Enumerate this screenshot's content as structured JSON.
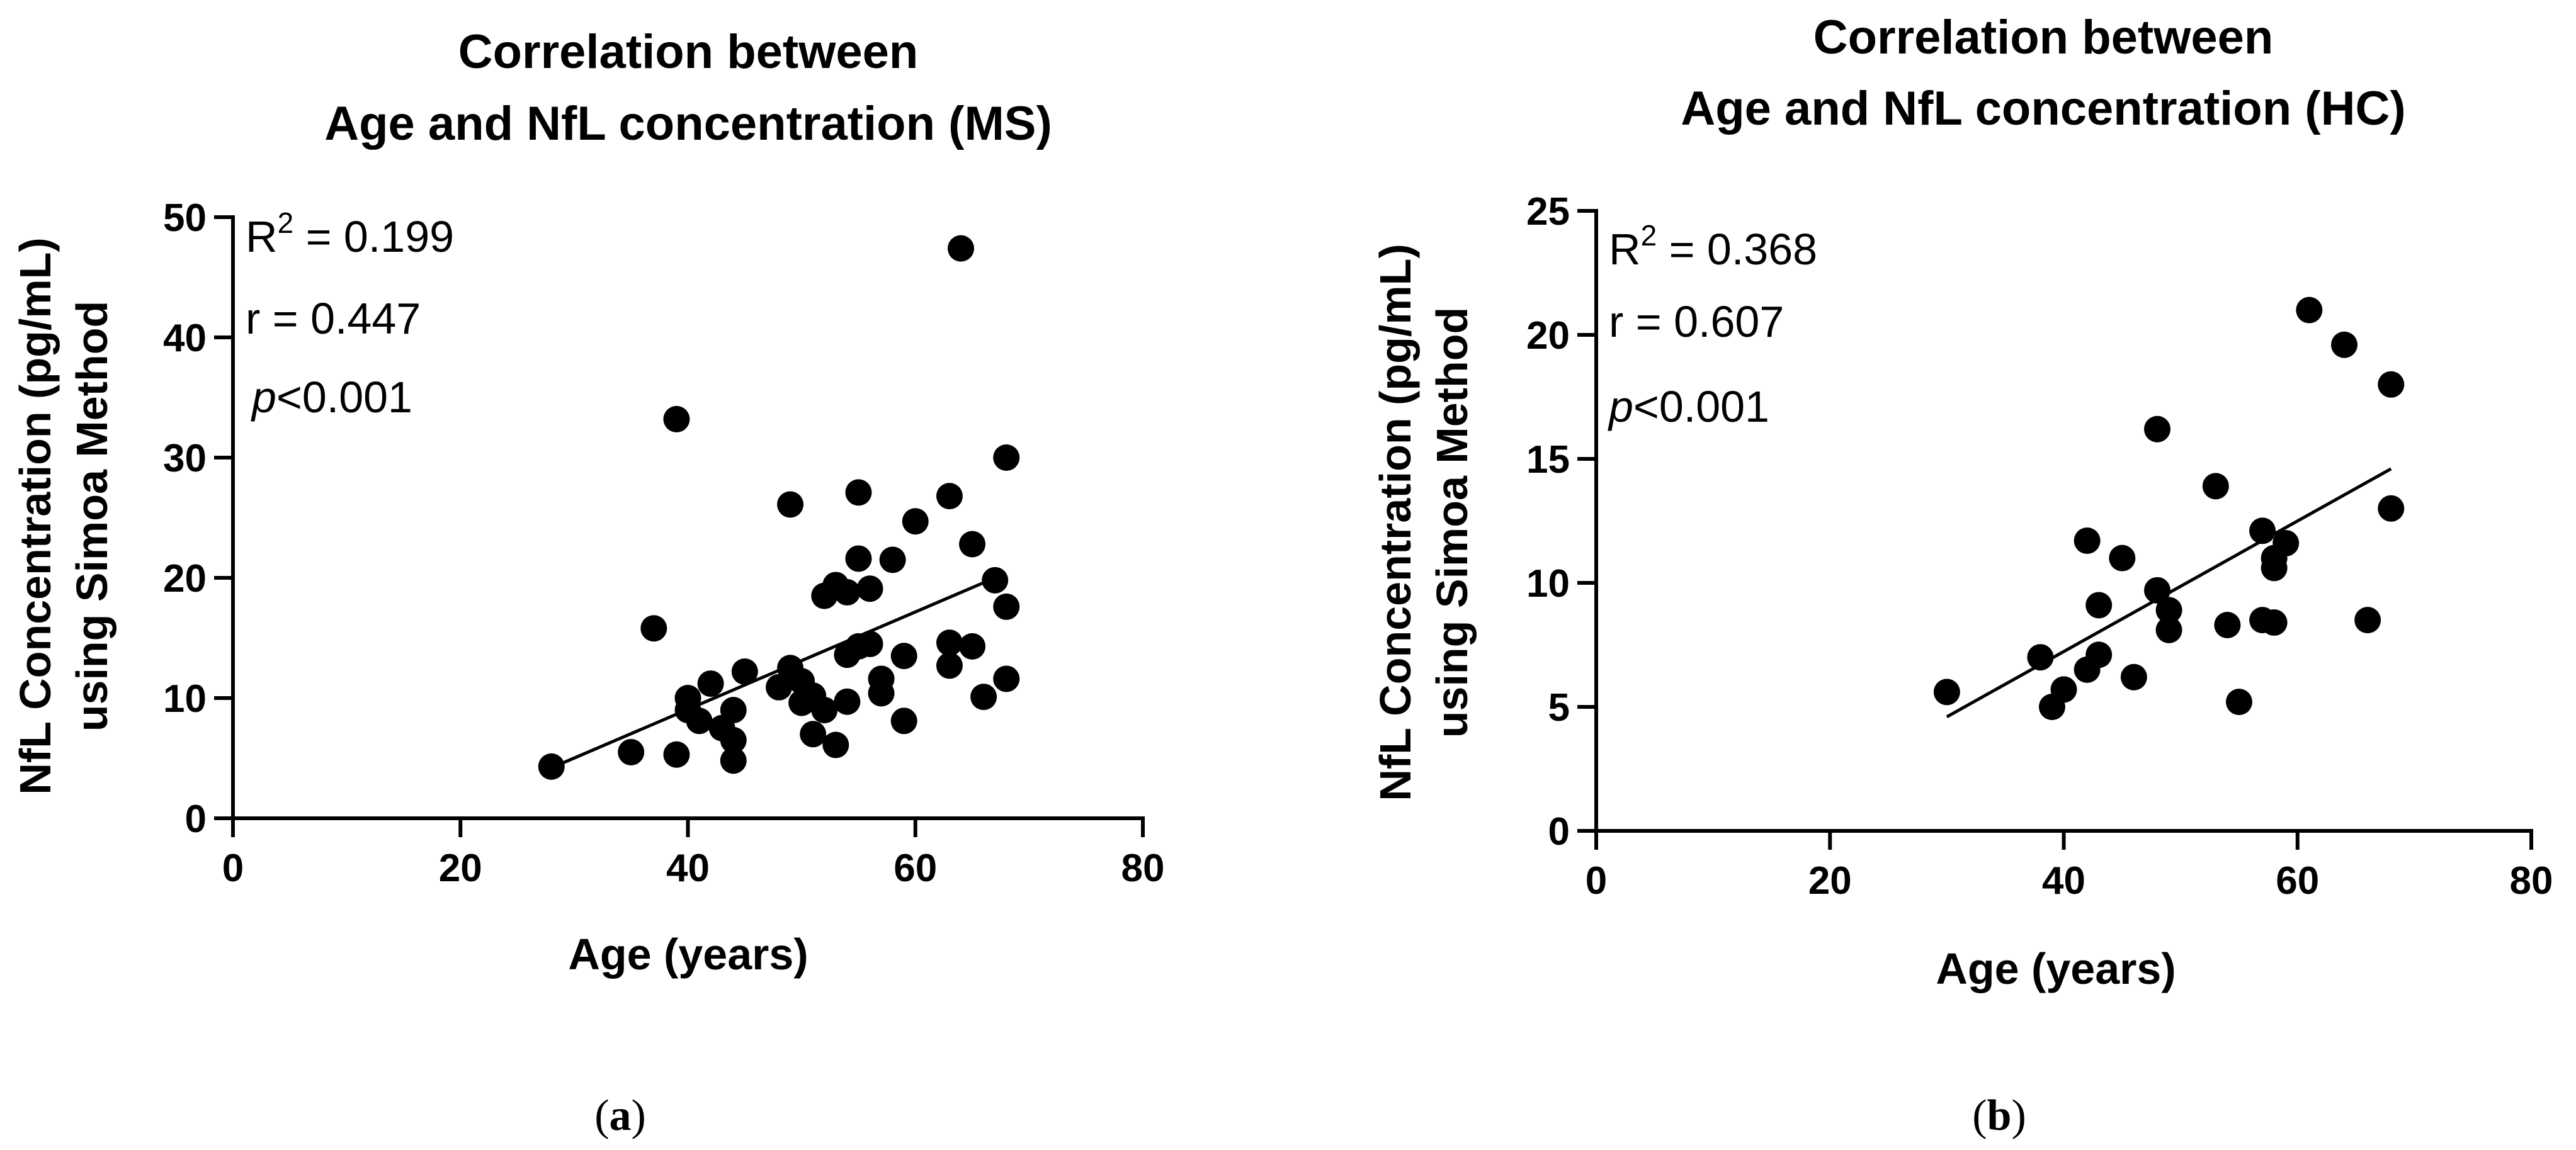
{
  "chart_data": [
    {
      "type": "scatter",
      "title_line1": "Correlation between",
      "title_line2": "Age and NfL concentration (MS)",
      "xlabel": "Age (years)",
      "ylabel_line1": "NfL Concentration (pg/mL)",
      "ylabel_line2": "using Simoa Method",
      "xlim": [
        0,
        80
      ],
      "ylim": [
        0,
        50
      ],
      "xticks": [
        0,
        20,
        40,
        60,
        80
      ],
      "yticks": [
        0,
        10,
        20,
        30,
        40,
        50
      ],
      "stats": {
        "r2_label": "R",
        "r2_sup": "2",
        "r2_value": " = 0.199",
        "r": "r = 0.447",
        "p_italic": "p",
        "p_rest": "<0.001"
      },
      "fit_line": {
        "x": [
          28,
          67
        ],
        "y": [
          4.2,
          20.0
        ]
      },
      "points": [
        [
          28,
          4.3
        ],
        [
          35,
          5.5
        ],
        [
          37,
          15.8
        ],
        [
          39,
          5.3
        ],
        [
          39,
          33.2
        ],
        [
          40,
          9.0
        ],
        [
          40,
          10.0
        ],
        [
          41,
          8.1
        ],
        [
          42,
          11.2
        ],
        [
          43,
          7.5
        ],
        [
          44,
          4.8
        ],
        [
          44,
          6.5
        ],
        [
          44,
          9.0
        ],
        [
          45,
          12.2
        ],
        [
          48,
          10.9
        ],
        [
          49,
          26.1
        ],
        [
          49,
          12.5
        ],
        [
          50,
          9.6
        ],
        [
          50,
          11.4
        ],
        [
          51,
          10.2
        ],
        [
          51,
          7.0
        ],
        [
          52,
          18.5
        ],
        [
          52,
          9.0
        ],
        [
          53,
          19.4
        ],
        [
          53,
          6.1
        ],
        [
          54,
          18.8
        ],
        [
          54,
          13.6
        ],
        [
          54,
          9.7
        ],
        [
          55,
          27.1
        ],
        [
          55,
          21.6
        ],
        [
          55,
          14.3
        ],
        [
          56,
          19.1
        ],
        [
          56,
          14.5
        ],
        [
          57,
          11.6
        ],
        [
          57,
          10.4
        ],
        [
          58,
          21.5
        ],
        [
          59,
          13.5
        ],
        [
          59,
          8.1
        ],
        [
          60,
          24.7
        ],
        [
          63,
          26.8
        ],
        [
          63,
          14.6
        ],
        [
          63,
          12.7
        ],
        [
          64,
          47.4
        ],
        [
          65,
          22.8
        ],
        [
          65,
          14.3
        ],
        [
          66,
          10.1
        ],
        [
          67,
          19.8
        ],
        [
          68,
          30.0
        ],
        [
          68,
          17.6
        ],
        [
          68,
          11.6
        ]
      ]
    },
    {
      "type": "scatter",
      "title_line1": "Correlation between",
      "title_line2": "Age and NfL concentration (HC)",
      "xlabel": "Age (years)",
      "ylabel_line1": "NfL Concentration (pg/mL)",
      "ylabel_line2": "using Simoa Method",
      "xlim": [
        0,
        80
      ],
      "ylim": [
        0,
        25
      ],
      "xticks": [
        0,
        20,
        40,
        60,
        80
      ],
      "yticks": [
        0,
        5,
        10,
        15,
        20,
        25
      ],
      "stats": {
        "r2_label": "R",
        "r2_sup": "2",
        "r2_value": " = 0.368",
        "r": "r = 0.607",
        "p_italic": "p",
        "p_rest": "<0.001"
      },
      "fit_line": {
        "x": [
          30,
          68
        ],
        "y": [
          4.6,
          14.6
        ]
      },
      "points": [
        [
          30,
          5.6
        ],
        [
          38,
          7.0
        ],
        [
          39,
          5.0
        ],
        [
          40,
          5.7
        ],
        [
          42,
          11.7
        ],
        [
          42,
          6.5
        ],
        [
          43,
          9.1
        ],
        [
          43,
          7.1
        ],
        [
          45,
          11.0
        ],
        [
          46,
          6.2
        ],
        [
          48,
          16.2
        ],
        [
          48,
          9.7
        ],
        [
          49,
          8.9
        ],
        [
          49,
          8.1
        ],
        [
          53,
          13.9
        ],
        [
          54,
          8.3
        ],
        [
          55,
          5.2
        ],
        [
          57,
          12.1
        ],
        [
          57,
          8.5
        ],
        [
          58,
          11.0
        ],
        [
          58,
          10.6
        ],
        [
          58,
          8.4
        ],
        [
          59,
          11.6
        ],
        [
          61,
          21.0
        ],
        [
          64,
          19.6
        ],
        [
          66,
          8.5
        ],
        [
          68,
          18.0
        ],
        [
          68,
          13.0
        ]
      ]
    }
  ],
  "captions": [
    {
      "open": "(",
      "letter": "a",
      "close": ")"
    },
    {
      "open": "(",
      "letter": "b",
      "close": ")"
    }
  ]
}
